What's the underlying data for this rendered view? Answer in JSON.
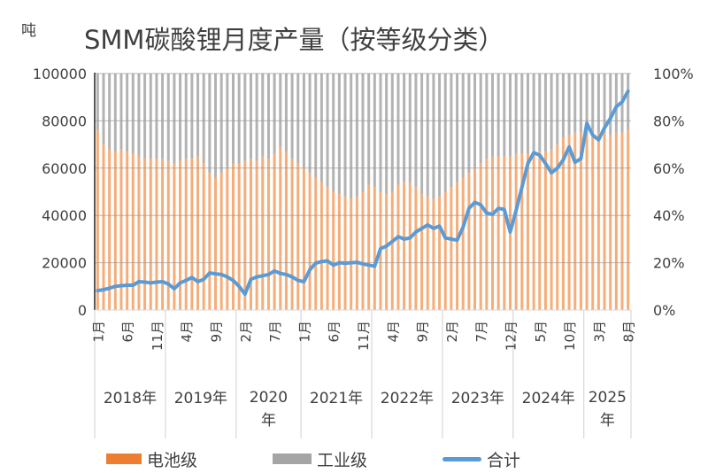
{
  "title": "SMM碳酸锂月度产量（按等级分类）",
  "unit": "吨",
  "legend": {
    "battery": "电池级",
    "industrial": "工业级",
    "total": "合计"
  },
  "colors": {
    "battery": "#f4a46a",
    "industrial": "#a6a6a6",
    "total": "#5b9bd5"
  },
  "chart_data": {
    "type": "bar+line",
    "title": "SMM碳酸锂月度产量（按等级分类）",
    "y_left": {
      "label": "吨",
      "range": [
        0,
        100000
      ],
      "ticks": [
        "0",
        "20000",
        "40000",
        "60000",
        "80000",
        "100000"
      ]
    },
    "y_right": {
      "range": [
        0,
        1
      ],
      "ticks": [
        "0%",
        "20%",
        "40%",
        "60%",
        "80%",
        "100%"
      ]
    },
    "grid": true,
    "legend_position": "bottom",
    "years": [
      {
        "label": "2018年",
        "months": [
          1,
          2,
          3,
          4,
          5,
          6,
          7,
          8,
          9,
          10,
          11,
          12
        ]
      },
      {
        "label": "2019年",
        "months": [
          1,
          2,
          3,
          4,
          5,
          6,
          7,
          8,
          9,
          10,
          11,
          12
        ]
      },
      {
        "label": "2020年",
        "months": [
          1,
          2,
          3,
          4,
          5,
          6,
          7,
          8,
          9,
          10,
          11
        ]
      },
      {
        "label": "2021年",
        "months": [
          1,
          2,
          3,
          4,
          5,
          6,
          7,
          8,
          9,
          10,
          11,
          12
        ]
      },
      {
        "label": "2022年",
        "months": [
          1,
          2,
          3,
          4,
          5,
          6,
          7,
          8,
          9,
          10,
          11,
          12
        ]
      },
      {
        "label": "2023年",
        "months": [
          1,
          2,
          3,
          4,
          5,
          6,
          7,
          8,
          9,
          10,
          11,
          12
        ]
      },
      {
        "label": "2024年",
        "months": [
          1,
          2,
          3,
          4,
          5,
          6,
          7,
          8,
          9,
          10,
          11,
          12
        ]
      },
      {
        "label": "2025年",
        "months": [
          1,
          2,
          3,
          4,
          5,
          6,
          7,
          8
        ]
      }
    ],
    "x_tick_labels": [
      "1月",
      "6月",
      "11月",
      "4月",
      "9月",
      "2月",
      "7月",
      "1月",
      "6月",
      "11月",
      "4月",
      "9月",
      "2月",
      "7月",
      "12月",
      "5月",
      "10月",
      "3月",
      "8月"
    ],
    "series": [
      {
        "name": "电池级",
        "type": "bar",
        "axis": "right",
        "values_pct": [
          76,
          70,
          68,
          67,
          68,
          67,
          66,
          65,
          64,
          64,
          64,
          64,
          63,
          62,
          63,
          64,
          64,
          65,
          62,
          58,
          56,
          58,
          60,
          62,
          62,
          63,
          64,
          63,
          65,
          64,
          66,
          69,
          67,
          64,
          62,
          60,
          58,
          56,
          54,
          52,
          50,
          49,
          48,
          47,
          48,
          50,
          53,
          52,
          50,
          49,
          50,
          53,
          54,
          54,
          52,
          49,
          48,
          47,
          48,
          50,
          52,
          54,
          56,
          58,
          60,
          62,
          64,
          65,
          65,
          65,
          65,
          66,
          66,
          66,
          66,
          67,
          67,
          68,
          70,
          73,
          74,
          75,
          75,
          75,
          76,
          75,
          75,
          74,
          75,
          75,
          76
        ]
      },
      {
        "name": "工业级",
        "type": "bar",
        "axis": "right",
        "note_values": "remainder to 100%"
      },
      {
        "name": "合计",
        "type": "line",
        "axis": "left",
        "values": [
          8200,
          8600,
          9200,
          10000,
          10300,
          10500,
          10500,
          12000,
          11800,
          11500,
          11800,
          12000,
          11000,
          9000,
          11500,
          12500,
          13800,
          12000,
          13000,
          15700,
          15300,
          15000,
          14000,
          12500,
          10000,
          6700,
          13000,
          14000,
          14500,
          15000,
          16500,
          15500,
          15000,
          14000,
          12500,
          12000,
          17000,
          19800,
          20500,
          20800,
          19000,
          20000,
          19800,
          20000,
          20200,
          19500,
          19000,
          18500,
          26000,
          27000,
          29000,
          31000,
          30000,
          30500,
          33000,
          34500,
          36000,
          34500,
          35500,
          30500,
          30000,
          29500,
          35000,
          43000,
          45500,
          44500,
          41000,
          40500,
          43000,
          42500,
          33000,
          42000,
          52000,
          62000,
          66500,
          65500,
          62000,
          58000,
          60000,
          63500,
          69000,
          62500,
          64000,
          79000,
          74000,
          72000,
          77000,
          81000,
          86000,
          88000,
          92500
        ]
      }
    ]
  }
}
